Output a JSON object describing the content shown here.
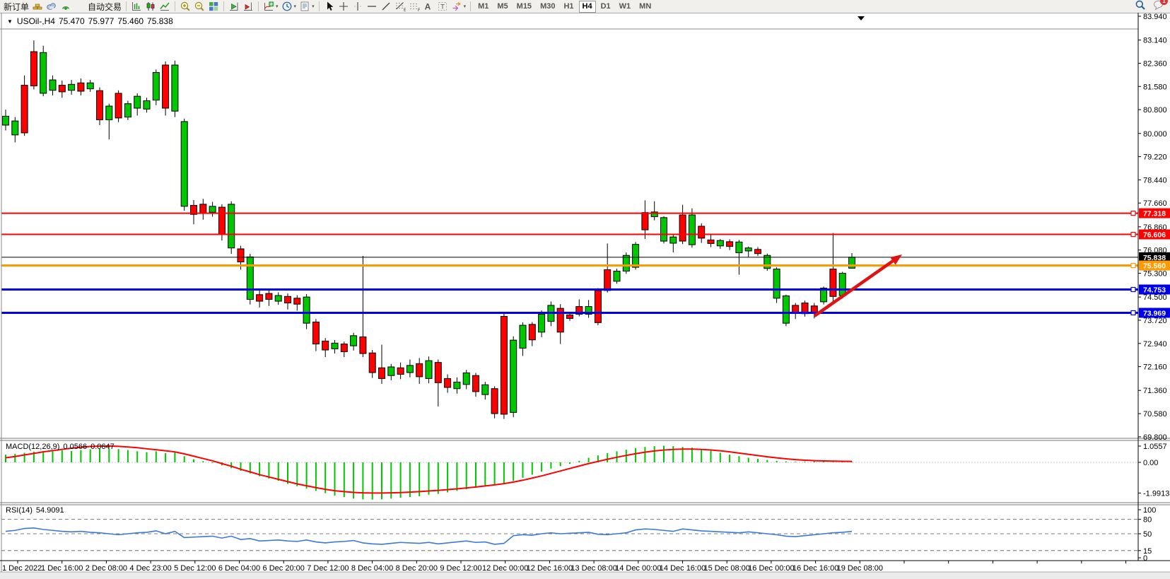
{
  "toolbar": {
    "new_order_label": "新订单",
    "autotrading_label": "自动交易",
    "buttons": [
      {
        "type": "text",
        "name": "new-order"
      },
      {
        "type": "icon",
        "name": "gold"
      },
      {
        "type": "icon",
        "name": "cloud"
      },
      {
        "type": "icon",
        "name": "signal"
      },
      {
        "type": "icon-text",
        "name": "autotrading"
      },
      {
        "type": "sep"
      },
      {
        "type": "icon",
        "name": "bar-chart"
      },
      {
        "type": "icon",
        "name": "candlestick"
      },
      {
        "type": "icon",
        "name": "line-chart"
      },
      {
        "type": "sep"
      },
      {
        "type": "icon",
        "name": "zoom-in"
      },
      {
        "type": "icon",
        "name": "zoom-out"
      },
      {
        "type": "icon",
        "name": "tile-windows"
      },
      {
        "type": "sep"
      },
      {
        "type": "icon",
        "name": "auto-scroll"
      },
      {
        "type": "icon",
        "name": "chart-shift"
      },
      {
        "type": "sep"
      },
      {
        "type": "icon",
        "name": "indicators",
        "dd": true
      },
      {
        "type": "icon",
        "name": "periods",
        "dd": true
      },
      {
        "type": "icon",
        "name": "templates",
        "dd": true
      },
      {
        "type": "sep"
      },
      {
        "type": "icon",
        "name": "cursor"
      },
      {
        "type": "icon",
        "name": "crosshair"
      },
      {
        "type": "icon",
        "name": "vline"
      },
      {
        "type": "icon",
        "name": "hline"
      },
      {
        "type": "icon",
        "name": "trendline"
      },
      {
        "type": "icon",
        "name": "fibonacci"
      },
      {
        "type": "icon",
        "name": "channel"
      },
      {
        "type": "icon",
        "name": "text"
      },
      {
        "type": "icon",
        "name": "label"
      },
      {
        "type": "icon",
        "name": "shapes",
        "dd": true
      },
      {
        "type": "sep"
      }
    ],
    "timeframes": [
      "M1",
      "M5",
      "M15",
      "M30",
      "H1",
      "H4",
      "D1",
      "W1",
      "MN"
    ],
    "active_timeframe": "H4",
    "chat_badge": "1"
  },
  "chart": {
    "title": {
      "symbol_period": "USOil-,H4",
      "open": "75.470",
      "high": "75.977",
      "low": "75.460",
      "close": "75.838"
    },
    "macd_label": {
      "name": "MACD(12,26,9)",
      "main": "0.0566",
      "signal": "0.0647"
    },
    "rsi_label": {
      "name": "RSI(14)",
      "value": "54.9091"
    }
  },
  "chart_data": {
    "type": "candlestick",
    "symbol": "USOil",
    "period": "H4",
    "colors": {
      "up": "#00c800",
      "down": "#ff0000",
      "wick": "#000000",
      "macd_hist": "#00c800",
      "macd_signal": "#ff0000",
      "rsi_line": "#3c78d8",
      "arrow": "#e01212"
    },
    "price_axis_ticks": [
      "83.940",
      "83.140",
      "82.360",
      "81.580",
      "80.800",
      "80.000",
      "79.220",
      "78.440",
      "77.660",
      "76.860",
      "76.080",
      "75.300",
      "74.500",
      "73.720",
      "72.940",
      "72.160",
      "71.360",
      "70.580",
      "69.800"
    ],
    "hlines": [
      {
        "price": 77.318,
        "label": "77.318",
        "color": "#ff0000",
        "width": 2
      },
      {
        "price": 76.606,
        "label": "76.606",
        "color": "#ff0000",
        "width": 2
      },
      {
        "price": 75.838,
        "label": "75.838",
        "color": "#000000",
        "width": 1,
        "is_price": true
      },
      {
        "price": 75.56,
        "label": "75.560",
        "color": "#ff9900",
        "width": 3
      },
      {
        "price": 74.753,
        "label": "74.753",
        "color": "#0000e8",
        "width": 3
      },
      {
        "price": 73.969,
        "label": "73.969",
        "color": "#0000e8",
        "width": 3
      }
    ],
    "candles": [
      [
        80.28,
        80.8,
        80.1,
        80.58
      ],
      [
        79.95,
        80.55,
        79.7,
        80.42
      ],
      [
        81.62,
        81.95,
        79.92,
        80.02
      ],
      [
        82.75,
        83.13,
        81.48,
        81.6
      ],
      [
        81.35,
        82.95,
        81.25,
        82.72
      ],
      [
        81.45,
        81.95,
        81.28,
        81.8
      ],
      [
        81.62,
        81.78,
        81.2,
        81.4
      ],
      [
        81.45,
        81.8,
        81.3,
        81.65
      ],
      [
        81.7,
        81.85,
        81.28,
        81.42
      ],
      [
        81.5,
        81.8,
        81.4,
        81.7
      ],
      [
        81.44,
        81.55,
        80.28,
        80.46
      ],
      [
        80.46,
        81.0,
        79.8,
        80.92
      ],
      [
        81.35,
        81.45,
        80.38,
        80.52
      ],
      [
        80.55,
        81.1,
        80.45,
        81.0
      ],
      [
        80.85,
        81.35,
        80.6,
        81.25
      ],
      [
        80.82,
        81.2,
        80.7,
        81.1
      ],
      [
        81.12,
        82.15,
        80.95,
        82.05
      ],
      [
        82.3,
        82.42,
        80.6,
        80.85
      ],
      [
        80.75,
        82.45,
        80.55,
        82.3
      ],
      [
        77.55,
        80.5,
        77.4,
        80.4
      ],
      [
        77.58,
        77.76,
        76.95,
        77.28
      ],
      [
        77.62,
        77.8,
        77.1,
        77.32
      ],
      [
        77.35,
        77.7,
        77.2,
        77.55
      ],
      [
        77.52,
        77.62,
        76.4,
        76.62
      ],
      [
        76.15,
        77.72,
        75.95,
        77.62
      ],
      [
        76.12,
        76.22,
        75.42,
        75.68
      ],
      [
        74.42,
        75.95,
        74.25,
        75.85
      ],
      [
        74.58,
        74.75,
        74.15,
        74.36
      ],
      [
        74.62,
        74.72,
        74.2,
        74.42
      ],
      [
        74.36,
        74.66,
        74.24,
        74.55
      ],
      [
        74.52,
        74.62,
        74.08,
        74.3
      ],
      [
        74.46,
        74.56,
        74.04,
        74.26
      ],
      [
        73.62,
        74.6,
        73.42,
        74.5
      ],
      [
        73.66,
        73.76,
        72.68,
        72.92
      ],
      [
        73.02,
        73.12,
        72.48,
        72.72
      ],
      [
        72.76,
        73.05,
        72.6,
        72.95
      ],
      [
        72.92,
        73.0,
        72.48,
        72.66
      ],
      [
        72.86,
        73.3,
        72.7,
        73.2
      ],
      [
        73.16,
        75.88,
        72.48,
        72.6
      ],
      [
        72.62,
        72.72,
        71.78,
        71.96
      ],
      [
        72.12,
        72.9,
        71.58,
        71.76
      ],
      [
        71.86,
        72.25,
        71.7,
        72.15
      ],
      [
        72.12,
        72.3,
        71.74,
        71.9
      ],
      [
        71.96,
        72.4,
        71.8,
        72.2
      ],
      [
        72.26,
        72.45,
        71.58,
        71.82
      ],
      [
        71.76,
        72.5,
        71.6,
        72.36
      ],
      [
        72.3,
        72.4,
        70.82,
        71.62
      ],
      [
        71.76,
        71.9,
        71.28,
        71.46
      ],
      [
        71.42,
        71.8,
        71.25,
        71.64
      ],
      [
        71.56,
        72.05,
        71.4,
        71.95
      ],
      [
        71.86,
        71.95,
        71.15,
        71.32
      ],
      [
        71.22,
        71.65,
        71.05,
        71.55
      ],
      [
        71.42,
        71.5,
        70.42,
        70.58
      ],
      [
        73.85,
        73.95,
        70.4,
        70.56
      ],
      [
        70.62,
        73.18,
        70.46,
        73.05
      ],
      [
        72.78,
        73.65,
        72.52,
        73.55
      ],
      [
        73.58,
        73.66,
        72.85,
        73.06
      ],
      [
        73.32,
        74.05,
        73.15,
        73.92
      ],
      [
        73.68,
        74.35,
        73.52,
        74.22
      ],
      [
        74.12,
        74.26,
        72.92,
        73.32
      ],
      [
        73.9,
        74.0,
        73.7,
        73.78
      ],
      [
        74.18,
        74.42,
        73.85,
        73.92
      ],
      [
        73.92,
        74.4,
        73.8,
        74.18
      ],
      [
        74.72,
        74.8,
        73.55,
        73.64
      ],
      [
        75.42,
        76.3,
        74.65,
        74.72
      ],
      [
        75.03,
        75.45,
        74.95,
        75.37
      ],
      [
        75.37,
        76.0,
        75.28,
        75.9
      ],
      [
        75.5,
        76.35,
        75.42,
        76.27
      ],
      [
        77.34,
        77.75,
        76.45,
        76.76
      ],
      [
        77.2,
        77.72,
        77.08,
        77.36
      ],
      [
        76.38,
        77.22,
        76.3,
        77.17
      ],
      [
        76.31,
        76.62,
        76.0,
        76.52
      ],
      [
        77.26,
        77.6,
        76.28,
        76.38
      ],
      [
        76.26,
        77.48,
        76.16,
        77.26
      ],
      [
        76.88,
        76.98,
        76.32,
        76.48
      ],
      [
        76.42,
        76.6,
        76.18,
        76.3
      ],
      [
        76.22,
        76.45,
        76.12,
        76.4
      ],
      [
        76.36,
        76.44,
        76.08,
        76.2
      ],
      [
        75.99,
        76.42,
        75.25,
        76.35
      ],
      [
        76.05,
        76.2,
        75.85,
        76.15
      ],
      [
        76.1,
        76.18,
        75.88,
        75.96
      ],
      [
        75.46,
        75.96,
        75.38,
        75.9
      ],
      [
        74.46,
        75.5,
        74.3,
        75.44
      ],
      [
        73.62,
        74.58,
        73.52,
        74.54
      ],
      [
        74.22,
        74.3,
        73.76,
        73.96
      ],
      [
        74.3,
        74.38,
        73.84,
        73.94
      ],
      [
        74.2,
        74.3,
        73.78,
        73.98
      ],
      [
        74.34,
        74.85,
        74.25,
        74.8
      ],
      [
        75.44,
        76.65,
        74.35,
        74.52
      ],
      [
        74.55,
        75.35,
        74.45,
        75.3
      ],
      [
        75.47,
        75.977,
        75.46,
        75.838
      ]
    ],
    "macd": {
      "axis_ticks": [
        "1.0557",
        "0.00",
        "-1.9913"
      ],
      "histogram": [
        0.5,
        0.55,
        0.62,
        0.7,
        0.66,
        0.72,
        0.78,
        0.74,
        0.8,
        0.85,
        0.88,
        0.9,
        0.86,
        0.8,
        0.72,
        0.66,
        0.72,
        0.6,
        0.68,
        0.4,
        0.2,
        0.08,
        -0.05,
        -0.2,
        -0.38,
        -0.55,
        -0.72,
        -0.9,
        -1.05,
        -1.2,
        -1.4,
        -1.55,
        -1.7,
        -1.85,
        -2.0,
        -2.15,
        -2.25,
        -2.35,
        -2.4,
        -2.42,
        -2.4,
        -2.35,
        -2.3,
        -2.25,
        -2.2,
        -2.1,
        -2.05,
        -1.95,
        -1.85,
        -1.75,
        -1.65,
        -1.55,
        -1.5,
        -1.4,
        -1.2,
        -1.0,
        -0.8,
        -0.6,
        -0.4,
        -0.25,
        -0.1,
        0.1,
        0.3,
        0.45,
        0.6,
        0.72,
        0.82,
        0.92,
        1.0,
        1.05,
        1.08,
        1.05,
        1.0,
        0.95,
        0.85,
        0.75,
        0.62,
        0.5,
        0.4,
        0.3,
        0.22,
        0.15,
        0.1,
        0.06,
        0.04,
        0.05,
        0.06,
        0.05,
        0.04,
        0.05,
        0.0566
      ],
      "signal": [
        0.3,
        0.38,
        0.48,
        0.58,
        0.68,
        0.76,
        0.84,
        0.92,
        0.98,
        1.03,
        1.05,
        1.06,
        1.04,
        1.0,
        0.95,
        0.88,
        0.82,
        0.75,
        0.68,
        0.55,
        0.4,
        0.25,
        0.1,
        -0.08,
        -0.25,
        -0.45,
        -0.62,
        -0.8,
        -0.95,
        -1.1,
        -1.25,
        -1.4,
        -1.52,
        -1.64,
        -1.75,
        -1.84,
        -1.9,
        -1.95,
        -1.98,
        -1.99,
        -1.99,
        -1.98,
        -1.96,
        -1.93,
        -1.9,
        -1.86,
        -1.82,
        -1.77,
        -1.72,
        -1.66,
        -1.6,
        -1.53,
        -1.46,
        -1.38,
        -1.28,
        -1.16,
        -1.02,
        -0.88,
        -0.72,
        -0.56,
        -0.4,
        -0.24,
        -0.08,
        0.06,
        0.2,
        0.33,
        0.45,
        0.56,
        0.66,
        0.74,
        0.8,
        0.84,
        0.86,
        0.86,
        0.84,
        0.8,
        0.75,
        0.68,
        0.6,
        0.52,
        0.44,
        0.36,
        0.29,
        0.23,
        0.18,
        0.14,
        0.11,
        0.09,
        0.08,
        0.07,
        0.0647
      ]
    },
    "rsi": {
      "axis_ticks": [
        "100",
        "80",
        "50",
        "15",
        "0"
      ],
      "levels": [
        80,
        50,
        15
      ],
      "values": [
        55,
        57,
        61,
        62,
        59,
        57,
        55,
        54,
        55,
        53,
        52,
        50,
        48,
        50,
        52,
        53,
        56,
        50,
        55,
        42,
        43,
        44,
        45,
        41,
        45,
        38,
        40,
        35,
        36,
        37,
        35,
        34,
        37,
        33,
        31,
        33,
        34,
        36,
        31,
        29,
        28,
        30,
        32,
        31,
        30,
        32,
        29,
        31,
        33,
        35,
        32,
        33,
        28,
        30,
        46,
        48,
        47,
        50,
        52,
        50,
        51,
        52,
        53,
        49,
        48,
        50,
        52,
        58,
        60,
        59,
        57,
        55,
        60,
        58,
        56,
        55,
        54,
        53,
        52,
        54,
        52,
        50,
        48,
        45,
        44,
        46,
        48,
        50,
        52,
        53,
        54.9091
      ]
    },
    "time_labels": [
      "1 Dec 2022",
      "1 Dec 16:00",
      "2 Dec 08:00",
      "4 Dec 23:00",
      "5 Dec 12:00",
      "6 Dec 04:00",
      "6 Dec 20:00",
      "7 Dec 12:00",
      "8 Dec 04:00",
      "8 Dec 20:00",
      "9 Dec 12:00",
      "12 Dec 00:00",
      "12 Dec 16:00",
      "13 Dec 08:00",
      "14 Dec 00:00",
      "14 Dec 16:00",
      "15 Dec 08:00",
      "16 Dec 00:00",
      "16 Dec 16:00",
      "19 Dec 08:00"
    ],
    "trend_arrow": {
      "from": [
        1152,
        447
      ],
      "to": [
        1276,
        360
      ]
    }
  }
}
